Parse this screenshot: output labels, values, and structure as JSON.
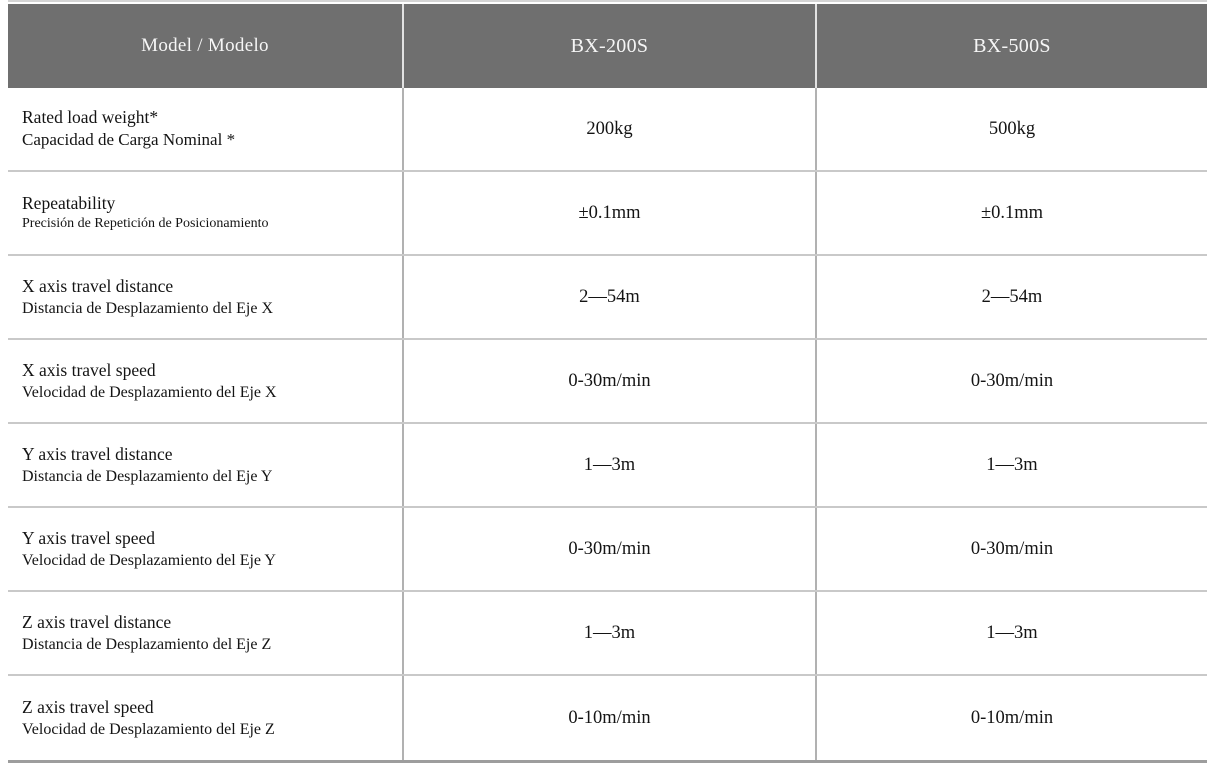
{
  "table": {
    "header": {
      "model_label": "Model / Modelo",
      "col_200s": "BX-200S",
      "col_500s": "BX-500S"
    },
    "rows": [
      {
        "label_en": "Rated load weight*",
        "label_es": "Capacidad de Carga Nominal *",
        "bx200s": "200kg",
        "bx500s": "500kg"
      },
      {
        "label_en": "Repeatability",
        "label_es": "Precisión de Repetición de Posicionamiento",
        "bx200s": "±0.1mm",
        "bx500s": "±0.1mm"
      },
      {
        "label_en": "X axis travel distance",
        "label_es": "Distancia de Desplazamiento del Eje X",
        "bx200s": "2—54m",
        "bx500s": "2—54m"
      },
      {
        "label_en": "X axis travel speed",
        "label_es": "Velocidad de Desplazamiento del Eje X",
        "bx200s": "0-30m/min",
        "bx500s": "0-30m/min"
      },
      {
        "label_en": "Y axis travel distance",
        "label_es": "Distancia de Desplazamiento del Eje Y",
        "bx200s": "1—3m",
        "bx500s": "1—3m"
      },
      {
        "label_en": "Y axis travel speed",
        "label_es": "Velocidad de Desplazamiento del Eje Y",
        "bx200s": "0-30m/min",
        "bx500s": "0-30m/min"
      },
      {
        "label_en": "Z axis travel distance",
        "label_es": "Distancia de Desplazamiento del Eje Z",
        "bx200s": "1—3m",
        "bx500s": "1—3m"
      },
      {
        "label_en": "Z axis travel speed",
        "label_es": "Velocidad de Desplazamiento del Eje Z",
        "bx200s": "0-10m/min",
        "bx500s": "0-10m/min"
      }
    ],
    "colors": {
      "header_bg": "#6f6f6f",
      "header_text": "#f6f6f6",
      "row_separator": "#c9c9c9",
      "column_separator": "#b1b1b1",
      "header_separator": "#e2e2e2",
      "bottom_border": "#9d9d9d",
      "top_border": "#d4d4d4"
    }
  },
  "chart_data": {
    "type": "table",
    "title": "Model / Modelo specification table",
    "columns": [
      "Model / Modelo",
      "BX-200S",
      "BX-500S"
    ],
    "rows": [
      [
        "Rated load weight* / Capacidad de Carga Nominal *",
        "200kg",
        "500kg"
      ],
      [
        "Repeatability / Precisión de Repetición de Posicionamiento",
        "±0.1mm",
        "±0.1mm"
      ],
      [
        "X axis travel distance / Distancia de Desplazamiento del Eje X",
        "2—54m",
        "2—54m"
      ],
      [
        "X axis travel speed / Velocidad de Desplazamiento del Eje X",
        "0-30m/min",
        "0-30m/min"
      ],
      [
        "Y axis travel distance / Distancia de Desplazamiento del Eje Y",
        "1—3m",
        "1—3m"
      ],
      [
        "Y axis travel speed / Velocidad de Desplazamiento del Eje Y",
        "0-30m/min",
        "0-30m/min"
      ],
      [
        "Z axis travel distance / Distancia de Desplazamiento del Eje Z",
        "1—3m",
        "1—3m"
      ],
      [
        "Z axis travel speed / Velocidad de Desplazamiento del Eje Z",
        "0-10m/min",
        "0-10m/min"
      ]
    ]
  }
}
